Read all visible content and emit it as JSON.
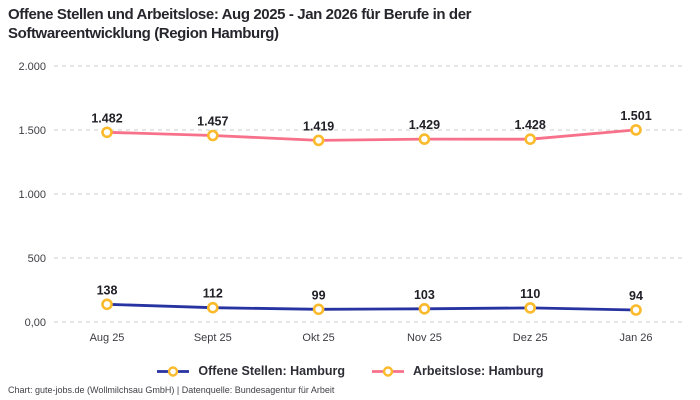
{
  "title_lines": [
    "Offene Stellen und Arbeitslose: Aug 2025 - Jan 2026 für Berufe in der",
    "Softwareentwicklung (Region Hamburg)"
  ],
  "footer": "Chart: gute-jobs.de (Wollmilchsau GmbH) | Datenquelle: Bundesagentur für Arbeit",
  "colors": {
    "accent_blue": "#2733A0",
    "accent_pink": "#F7718A",
    "marker_ring": "#FBBA2C",
    "marker_fill": "#FFFFFF",
    "gridline": "#CCCCCC",
    "title_text": "#26262D",
    "value_label_text": "#202027",
    "tick_text": "#3C3C44",
    "footer_text": "#3F3F46"
  },
  "chart_data": {
    "type": "line",
    "x": [
      "Aug 25",
      "Sept 25",
      "Okt 25",
      "Nov 25",
      "Dez 25",
      "Jan 26"
    ],
    "series": [
      {
        "name": "Offene Stellen: Hamburg",
        "color": "#2733A0",
        "values": [
          138,
          112,
          99,
          103,
          110,
          94
        ],
        "value_labels": [
          "138",
          "112",
          "99",
          "103",
          "110",
          "94"
        ]
      },
      {
        "name": "Arbeitslose: Hamburg",
        "color": "#F7718A",
        "values": [
          1482,
          1457,
          1419,
          1429,
          1428,
          1501
        ],
        "value_labels": [
          "1.482",
          "1.457",
          "1.419",
          "1.429",
          "1.428",
          "1.501"
        ]
      }
    ],
    "ylim": [
      0,
      2000
    ],
    "yticks": [
      {
        "value": 0,
        "label": "0,00"
      },
      {
        "value": 500,
        "label": "500"
      },
      {
        "value": 1000,
        "label": "1.000"
      },
      {
        "value": 1500,
        "label": "1.500"
      },
      {
        "value": 2000,
        "label": "2.000"
      }
    ],
    "grid": "horizontal-dashed",
    "legend_position": "bottom",
    "marker_style": "circle-yellow-ring-white-fill"
  }
}
